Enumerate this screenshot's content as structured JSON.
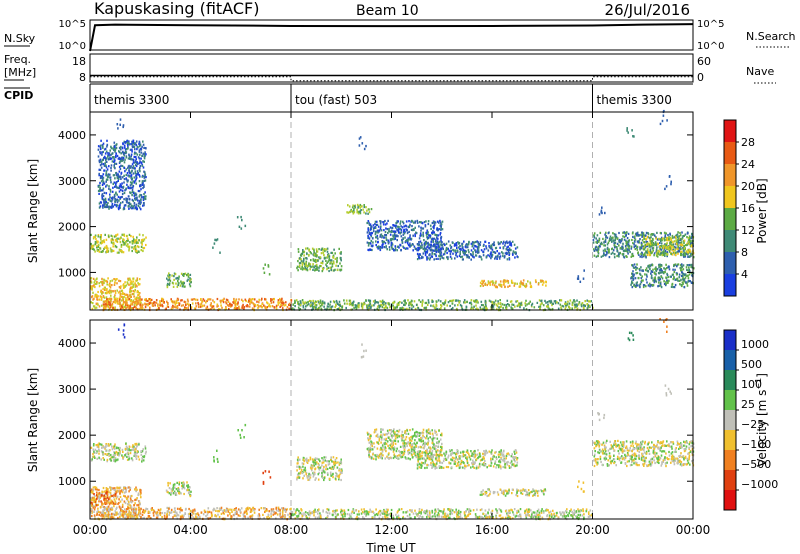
{
  "header": {
    "station": "Kapuskasing (fitACF)",
    "beam": "Beam 10",
    "date": "26/Jul/2016"
  },
  "nsky_panel": {
    "left_label": "N.Sky",
    "right_label": "N.Search",
    "left_ticks": [
      "10^5",
      "10^0"
    ],
    "right_ticks": [
      "10^5",
      "10^0"
    ]
  },
  "freq_panel": {
    "left_label_line1": "Freq.",
    "left_label_line2": "[MHz]",
    "right_label": "Nave",
    "left_ticks": [
      "18",
      "8"
    ],
    "right_ticks": [
      "60",
      "0"
    ]
  },
  "cpid_panel": {
    "label": "CPID",
    "segments": [
      {
        "name": "themis 3300",
        "start_hour": 0,
        "end_hour": 8
      },
      {
        "name": "tou (fast) 503",
        "start_hour": 8,
        "end_hour": 20
      },
      {
        "name": "themis 3300",
        "start_hour": 20,
        "end_hour": 24
      }
    ]
  },
  "colors": {
    "power_scale": [
      "#1a3fe0",
      "#2e5fae",
      "#3f8a76",
      "#5caa44",
      "#b5cd2e",
      "#f0c61e",
      "#f0962a",
      "#e85a14",
      "#e01414"
    ],
    "velocity_scale": [
      "#1a2fc8",
      "#1860a8",
      "#2a8a5a",
      "#62c24a",
      "#c0c0b8",
      "#f0c030",
      "#f08020",
      "#e04010",
      "#e01010"
    ],
    "gridline": "#b0b0b0"
  },
  "chart_data": [
    {
      "type": "line",
      "title": "",
      "ylabel": "N.Sky",
      "y_scale": "log",
      "ylim": [
        1,
        100000
      ],
      "x_range_hours": [
        0,
        24
      ],
      "series": [
        {
          "name": "N.Sky",
          "x": [
            0,
            0.2,
            1,
            4,
            8,
            12,
            16,
            20,
            22,
            24
          ],
          "values": [
            1,
            20000,
            25000,
            20000,
            15000,
            14000,
            15000,
            18000,
            25000,
            30000
          ]
        }
      ]
    },
    {
      "type": "line",
      "title": "",
      "ylabel": "Freq. [MHz]",
      "ylim": [
        8,
        18
      ],
      "y2label": "Nave",
      "y2lim": [
        0,
        60
      ],
      "x_range_hours": [
        0,
        24
      ],
      "series": [
        {
          "name": "Freq.",
          "x": [
            0,
            8,
            8,
            24
          ],
          "values": [
            10.5,
            10.5,
            10.5,
            10.5
          ]
        },
        {
          "name": "Nave",
          "x": [
            0,
            8,
            8,
            20,
            20,
            24
          ],
          "values": [
            12,
            12,
            3,
            3,
            12,
            12
          ]
        }
      ]
    },
    {
      "type": "heatmap",
      "title": "",
      "xlabel": "",
      "ylabel": "Slant Range [km]",
      "colorbar_label": "Power [dB]",
      "colorbar_ticks": [
        "28",
        "24",
        "20",
        "16",
        "12",
        "8",
        "4"
      ],
      "colorbar_range": [
        0,
        32
      ],
      "x_ticks": [
        "00:00",
        "04:00",
        "08:00",
        "12:00",
        "16:00",
        "20:00",
        "00:00"
      ],
      "y_ticks": [
        "1000",
        "2000",
        "3000",
        "4000"
      ],
      "ylim": [
        180,
        4500
      ],
      "x_range_hours": [
        0,
        24
      ],
      "regions": [
        {
          "t0": 0.0,
          "t1": 2.0,
          "r0": 200,
          "r1": 900,
          "level": 5
        },
        {
          "t0": 0.0,
          "t1": 2.2,
          "r0": 1450,
          "r1": 1850,
          "level": 4
        },
        {
          "t0": 3.0,
          "t1": 4.0,
          "r0": 700,
          "r1": 1000,
          "level": 3
        },
        {
          "t0": 0.3,
          "t1": 2.2,
          "r0": 2400,
          "r1": 3900,
          "level": 1
        },
        {
          "t0": 0.5,
          "t1": 8.0,
          "r0": 200,
          "r1": 450,
          "level": 6
        },
        {
          "t0": 8.0,
          "t1": 20.0,
          "r0": 200,
          "r1": 420,
          "level": 3
        },
        {
          "t0": 8.2,
          "t1": 10.0,
          "r0": 1050,
          "r1": 1550,
          "level": 3
        },
        {
          "t0": 10.2,
          "t1": 11.2,
          "r0": 2300,
          "r1": 2500,
          "level": 3
        },
        {
          "t0": 11.0,
          "t1": 14.0,
          "r0": 1500,
          "r1": 2150,
          "level": 1
        },
        {
          "t0": 13.0,
          "t1": 17.0,
          "r0": 1300,
          "r1": 1700,
          "level": 1
        },
        {
          "t0": 15.5,
          "t1": 18.2,
          "r0": 700,
          "r1": 850,
          "level": 5
        },
        {
          "t0": 20.0,
          "t1": 24.0,
          "r0": 1350,
          "r1": 1900,
          "level": 2
        },
        {
          "t0": 22.0,
          "t1": 24.0,
          "r0": 1400,
          "r1": 1800,
          "level": 4
        },
        {
          "t0": 21.5,
          "t1": 24.0,
          "r0": 700,
          "r1": 1200,
          "level": 2
        }
      ],
      "scattered_gates": [
        {
          "t": 1.2,
          "r": 4300,
          "level": 1
        },
        {
          "t": 6.0,
          "r": 2100,
          "level": 2
        },
        {
          "t": 10.8,
          "r": 3850,
          "level": 1
        },
        {
          "t": 20.3,
          "r": 2400,
          "level": 1
        },
        {
          "t": 21.5,
          "r": 4100,
          "level": 2
        },
        {
          "t": 22.8,
          "r": 4400,
          "level": 1
        },
        {
          "t": 23.0,
          "r": 3000,
          "level": 1
        },
        {
          "t": 5.0,
          "r": 1600,
          "level": 2
        },
        {
          "t": 7.0,
          "r": 1100,
          "level": 3
        },
        {
          "t": 19.5,
          "r": 950,
          "level": 1
        }
      ]
    },
    {
      "type": "heatmap",
      "title": "",
      "xlabel": "Time UT",
      "ylabel": "Slant Range [km]",
      "colorbar_label": "Velocity [m s^-1]",
      "colorbar_ticks": [
        "1000",
        "500",
        "100",
        "25",
        "−25",
        "−100",
        "−500",
        "−1000"
      ],
      "x_ticks": [
        "00:00",
        "04:00",
        "08:00",
        "12:00",
        "16:00",
        "20:00",
        "00:00"
      ],
      "y_ticks": [
        "1000",
        "2000",
        "3000",
        "4000"
      ],
      "ylim": [
        180,
        4500
      ],
      "x_range_hours": [
        0,
        24
      ],
      "regions": [
        {
          "t0": 0.0,
          "t1": 2.0,
          "r0": 200,
          "r1": 900,
          "level": 5
        },
        {
          "t0": 0.0,
          "t1": 2.2,
          "r0": 1450,
          "r1": 1850,
          "level": 4
        },
        {
          "t0": 3.0,
          "t1": 4.0,
          "r0": 700,
          "r1": 1000,
          "level": 4
        },
        {
          "t0": 0.5,
          "t1": 8.0,
          "r0": 200,
          "r1": 450,
          "level": 5
        },
        {
          "t0": 8.0,
          "t1": 20.0,
          "r0": 200,
          "r1": 420,
          "level": 4
        },
        {
          "t0": 8.2,
          "t1": 10.0,
          "r0": 1050,
          "r1": 1550,
          "level": 4
        },
        {
          "t0": 11.0,
          "t1": 14.0,
          "r0": 1500,
          "r1": 2150,
          "level": 4
        },
        {
          "t0": 13.0,
          "t1": 17.0,
          "r0": 1300,
          "r1": 1700,
          "level": 4
        },
        {
          "t0": 15.5,
          "t1": 18.2,
          "r0": 700,
          "r1": 850,
          "level": 4
        },
        {
          "t0": 20.0,
          "t1": 24.0,
          "r0": 1350,
          "r1": 1900,
          "level": 4
        },
        {
          "t0": 0.0,
          "t1": 1.0,
          "r0": 500,
          "r1": 800,
          "level": 6
        }
      ],
      "scattered_gates": [
        {
          "t": 1.2,
          "r": 4300,
          "level": 0
        },
        {
          "t": 6.0,
          "r": 2100,
          "level": 3
        },
        {
          "t": 10.8,
          "r": 3850,
          "level": 4
        },
        {
          "t": 20.3,
          "r": 2400,
          "level": 4
        },
        {
          "t": 21.5,
          "r": 4100,
          "level": 2
        },
        {
          "t": 22.8,
          "r": 4400,
          "level": 6
        },
        {
          "t": 23.0,
          "r": 3000,
          "level": 4
        },
        {
          "t": 5.0,
          "r": 1600,
          "level": 3
        },
        {
          "t": 7.0,
          "r": 1100,
          "level": 7
        },
        {
          "t": 19.5,
          "r": 950,
          "level": 5
        }
      ]
    }
  ]
}
